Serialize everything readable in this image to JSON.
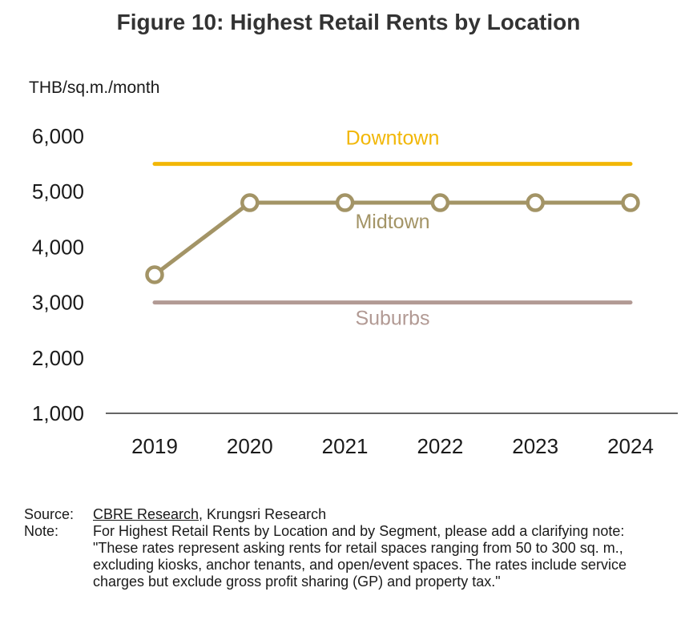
{
  "title": "Figure 10: Highest Retail Rents by Location",
  "colors": {
    "downtown": "#F2B707",
    "midtown": "#A39466",
    "suburbs": "#B29A94",
    "axis": "#666666"
  },
  "chart_data": {
    "type": "line",
    "ylabel": "THB/sq.m./month",
    "x": [
      "2019",
      "2020",
      "2021",
      "2022",
      "2023",
      "2024"
    ],
    "ylim": [
      1000,
      6000
    ],
    "yticks": [
      "6,000",
      "5,000",
      "4,000",
      "3,000",
      "2,000",
      "1,000"
    ],
    "ytick_values": [
      6000,
      5000,
      4000,
      3000,
      2000,
      1000
    ],
    "grid": false,
    "series": [
      {
        "name": "Downtown",
        "values": [
          5500,
          5500,
          5500,
          5500,
          5500,
          5500
        ],
        "markers": false
      },
      {
        "name": "Midtown",
        "values": [
          3500,
          4800,
          4800,
          4800,
          4800,
          4800
        ],
        "markers": true
      },
      {
        "name": "Suburbs",
        "values": [
          3000,
          3000,
          3000,
          3000,
          3000,
          3000
        ],
        "markers": false
      }
    ]
  },
  "source": {
    "label": "Source:",
    "link_text": "CBRE Research",
    "rest": ", Krungsri Research"
  },
  "note": {
    "label": "Note:",
    "text": "For Highest Retail Rents by Location and by Segment, please add a clarifying note: \"These rates represent asking rents for retail spaces ranging from 50 to 300 sq. m., excluding kiosks, anchor tenants, and open/event spaces. The rates include service charges but exclude gross profit sharing (GP) and property tax.\""
  }
}
